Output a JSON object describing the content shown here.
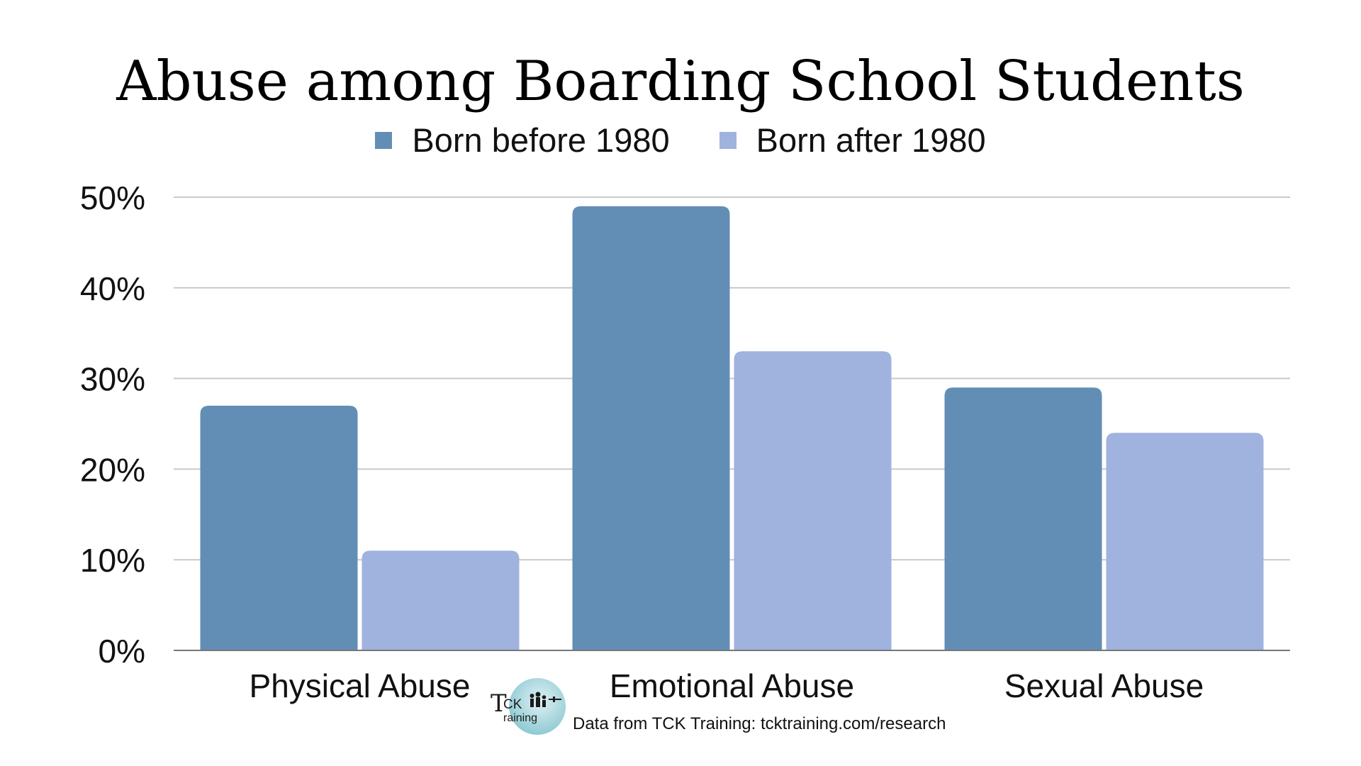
{
  "chart_data": {
    "type": "bar",
    "title": "Abuse among Boarding School Students",
    "categories": [
      "Physical Abuse",
      "Emotional Abuse",
      "Sexual Abuse"
    ],
    "series": [
      {
        "name": "Born before 1980",
        "values": [
          27,
          49,
          29
        ],
        "color": "#628eb6"
      },
      {
        "name": "Born after 1980",
        "values": [
          11,
          33,
          24
        ],
        "color": "#a0b2de"
      }
    ],
    "yticks": [
      "0%",
      "10%",
      "20%",
      "30%",
      "40%",
      "50%"
    ],
    "ylim": [
      0,
      50
    ],
    "grid": true,
    "legend": "top-center",
    "xlabel": "",
    "ylabel": ""
  },
  "footer": {
    "logo_text_main": "CK",
    "logo_text_sub": "raining",
    "logo_letter_t": "T",
    "source": "Data from TCK Training: tcktraining.com/research"
  }
}
